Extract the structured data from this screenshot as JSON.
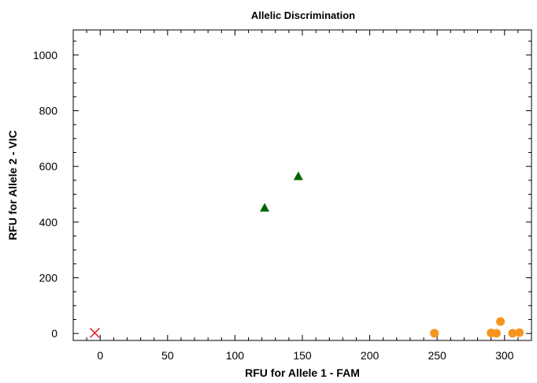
{
  "chart_data": {
    "type": "scatter",
    "title": "Allelic Discrimination",
    "xlabel": "RFU for Allele 1 - FAM",
    "ylabel": "RFU for Allele 2 - VIC",
    "xlim": [
      -20,
      320
    ],
    "ylim": [
      -25,
      1090
    ],
    "xticks": [
      0,
      50,
      100,
      150,
      200,
      250,
      300
    ],
    "yticks": [
      0,
      200,
      400,
      600,
      800,
      1000
    ],
    "xtick_labels": [
      "0",
      "50",
      "100",
      "150",
      "200",
      "250",
      "300"
    ],
    "ytick_labels": [
      "0",
      "200",
      "400",
      "600",
      "800",
      "1000"
    ],
    "grid": false,
    "series": [
      {
        "marker": "triangle",
        "color": "#006400",
        "points": [
          {
            "x": 122,
            "y": 452
          },
          {
            "x": 147,
            "y": 565
          }
        ]
      },
      {
        "marker": "circle",
        "color": "#f7941d",
        "points": [
          {
            "x": 248,
            "y": 1
          },
          {
            "x": 290,
            "y": 2
          },
          {
            "x": 294,
            "y": 1
          },
          {
            "x": 297,
            "y": 43
          },
          {
            "x": 306,
            "y": 1
          },
          {
            "x": 311,
            "y": 3
          }
        ]
      },
      {
        "marker": "x",
        "color": "#e8202a",
        "points": [
          {
            "x": -4,
            "y": 2
          }
        ]
      }
    ]
  }
}
